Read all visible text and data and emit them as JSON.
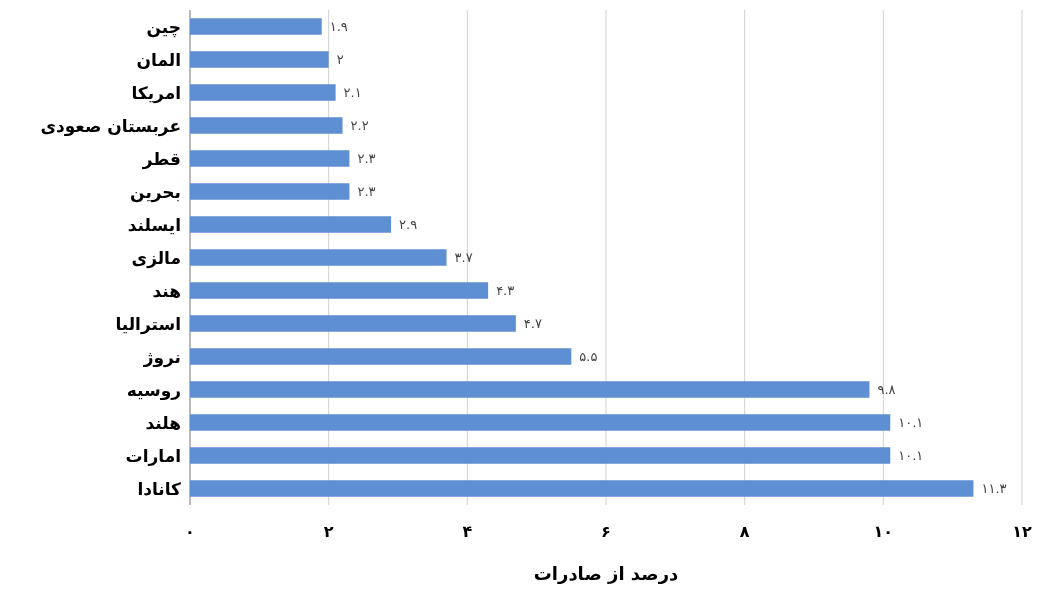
{
  "chart_data": {
    "type": "bar",
    "orientation": "horizontal",
    "categories": [
      "چین",
      "المان",
      "امریکا",
      "عربستان صعودی",
      "قطر",
      "بحرین",
      "ایسلند",
      "مالزی",
      "هند",
      "استرالیا",
      "نروژ",
      "روسیه",
      "هلند",
      "امارات",
      "کانادا"
    ],
    "values": [
      1.9,
      2,
      2.1,
      2.2,
      2.3,
      2.3,
      2.9,
      3.7,
      4.3,
      4.7,
      5.5,
      9.8,
      10.1,
      10.1,
      11.3
    ],
    "value_labels": [
      "۱.۹",
      "۲",
      "۲.۱",
      "۲.۲",
      "۲.۳",
      "۲.۳",
      "۲.۹",
      "۳.۷",
      "۴.۳",
      "۴.۷",
      "۵.۵",
      "۹.۸",
      "۱۰.۱",
      "۱۰.۱",
      "۱۱.۳"
    ],
    "color": "#5f8fd3",
    "xlim": [
      0,
      12
    ],
    "xticks": [
      {
        "value": 0,
        "label": "۰"
      },
      {
        "value": 2,
        "label": "۲"
      },
      {
        "value": 4,
        "label": "۴"
      },
      {
        "value": 6,
        "label": "۶"
      },
      {
        "value": 8,
        "label": "۸"
      },
      {
        "value": 10,
        "label": "۱۰"
      },
      {
        "value": 12,
        "label": "۱۲"
      }
    ],
    "xlabel": "درصد از صادرات",
    "grid": "x"
  }
}
